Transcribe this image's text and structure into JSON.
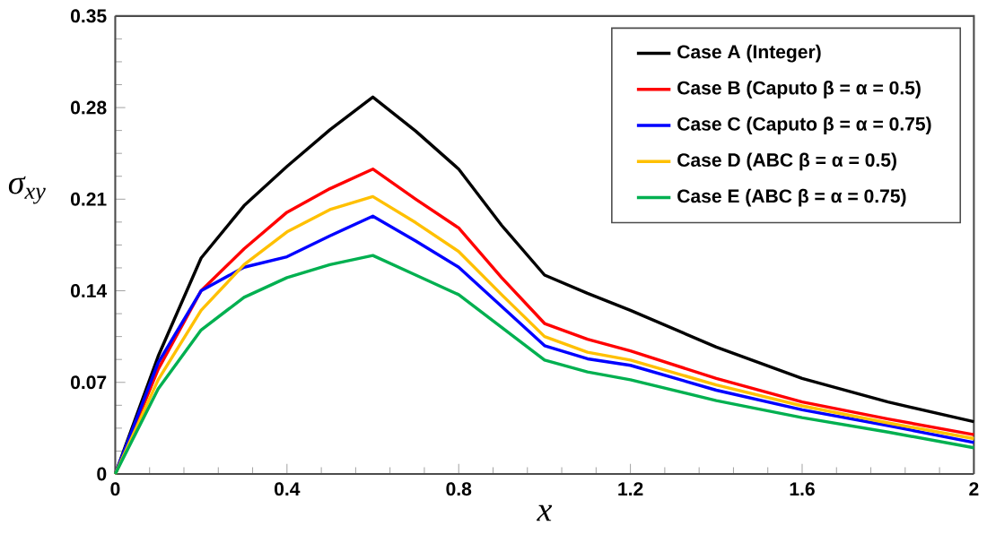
{
  "chart_data": {
    "type": "line",
    "xlabel": "x",
    "ylabel": "σ$_{xy}$",
    "x": [
      0,
      0.1,
      0.2,
      0.3,
      0.4,
      0.5,
      0.6,
      0.7,
      0.8,
      0.9,
      1.0,
      1.1,
      1.2,
      1.4,
      1.6,
      1.8,
      2.0
    ],
    "series": [
      {
        "name": "Case A (Integer)",
        "color": "#000000",
        "values": [
          0,
          0.09,
          0.165,
          0.205,
          0.235,
          0.263,
          0.288,
          0.262,
          0.233,
          0.19,
          0.152,
          0.138,
          0.125,
          0.097,
          0.073,
          0.055,
          0.04
        ]
      },
      {
        "name": "Case B (Caputo β = α = 0.5)",
        "color": "#ff0000",
        "values": [
          0,
          0.08,
          0.14,
          0.172,
          0.2,
          0.218,
          0.233,
          0.21,
          0.188,
          0.15,
          0.115,
          0.103,
          0.094,
          0.073,
          0.055,
          0.042,
          0.03
        ]
      },
      {
        "name": "Case C (Caputo β = α = 0.75)",
        "color": "#0000ff",
        "values": [
          0,
          0.085,
          0.14,
          0.158,
          0.166,
          0.182,
          0.197,
          0.178,
          0.158,
          0.128,
          0.098,
          0.088,
          0.083,
          0.064,
          0.049,
          0.037,
          0.024
        ]
      },
      {
        "name": "Case D (ABC β = α = 0.5)",
        "color": "#ffc000",
        "values": [
          0,
          0.072,
          0.125,
          0.16,
          0.185,
          0.202,
          0.212,
          0.192,
          0.17,
          0.137,
          0.105,
          0.093,
          0.087,
          0.068,
          0.052,
          0.039,
          0.027
        ]
      },
      {
        "name": "Case E (ABC β = α = 0.75)",
        "color": "#00b050",
        "values": [
          0,
          0.065,
          0.11,
          0.135,
          0.15,
          0.16,
          0.167,
          0.152,
          0.137,
          0.112,
          0.087,
          0.078,
          0.072,
          0.056,
          0.043,
          0.032,
          0.02
        ]
      }
    ],
    "xlim": [
      0,
      2
    ],
    "ylim": [
      0,
      0.35
    ],
    "xticks": [
      0,
      0.4,
      0.8,
      1.2,
      1.6,
      2
    ],
    "yticks": [
      0,
      0.07,
      0.14,
      0.21,
      0.28,
      0.35
    ],
    "legend": "top right",
    "grid": false,
    "marker": "none",
    "line_style": "solid"
  }
}
